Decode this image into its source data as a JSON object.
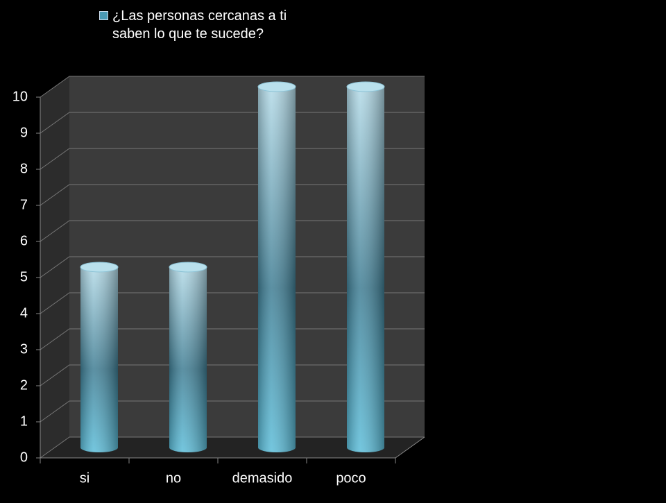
{
  "chart_data": {
    "type": "bar",
    "categories": [
      "si",
      "no",
      "demasido",
      "poco"
    ],
    "series": [
      {
        "name": "¿Las personas cercanas a ti saben lo que te sucede?",
        "color": "#4a9ab5",
        "values": [
          5,
          5,
          10,
          10
        ]
      }
    ],
    "ylim": [
      0,
      10
    ],
    "yticks": [
      0,
      1,
      2,
      3,
      4,
      5,
      6,
      7,
      8,
      9,
      10
    ],
    "grid": true,
    "legend": "top"
  }
}
